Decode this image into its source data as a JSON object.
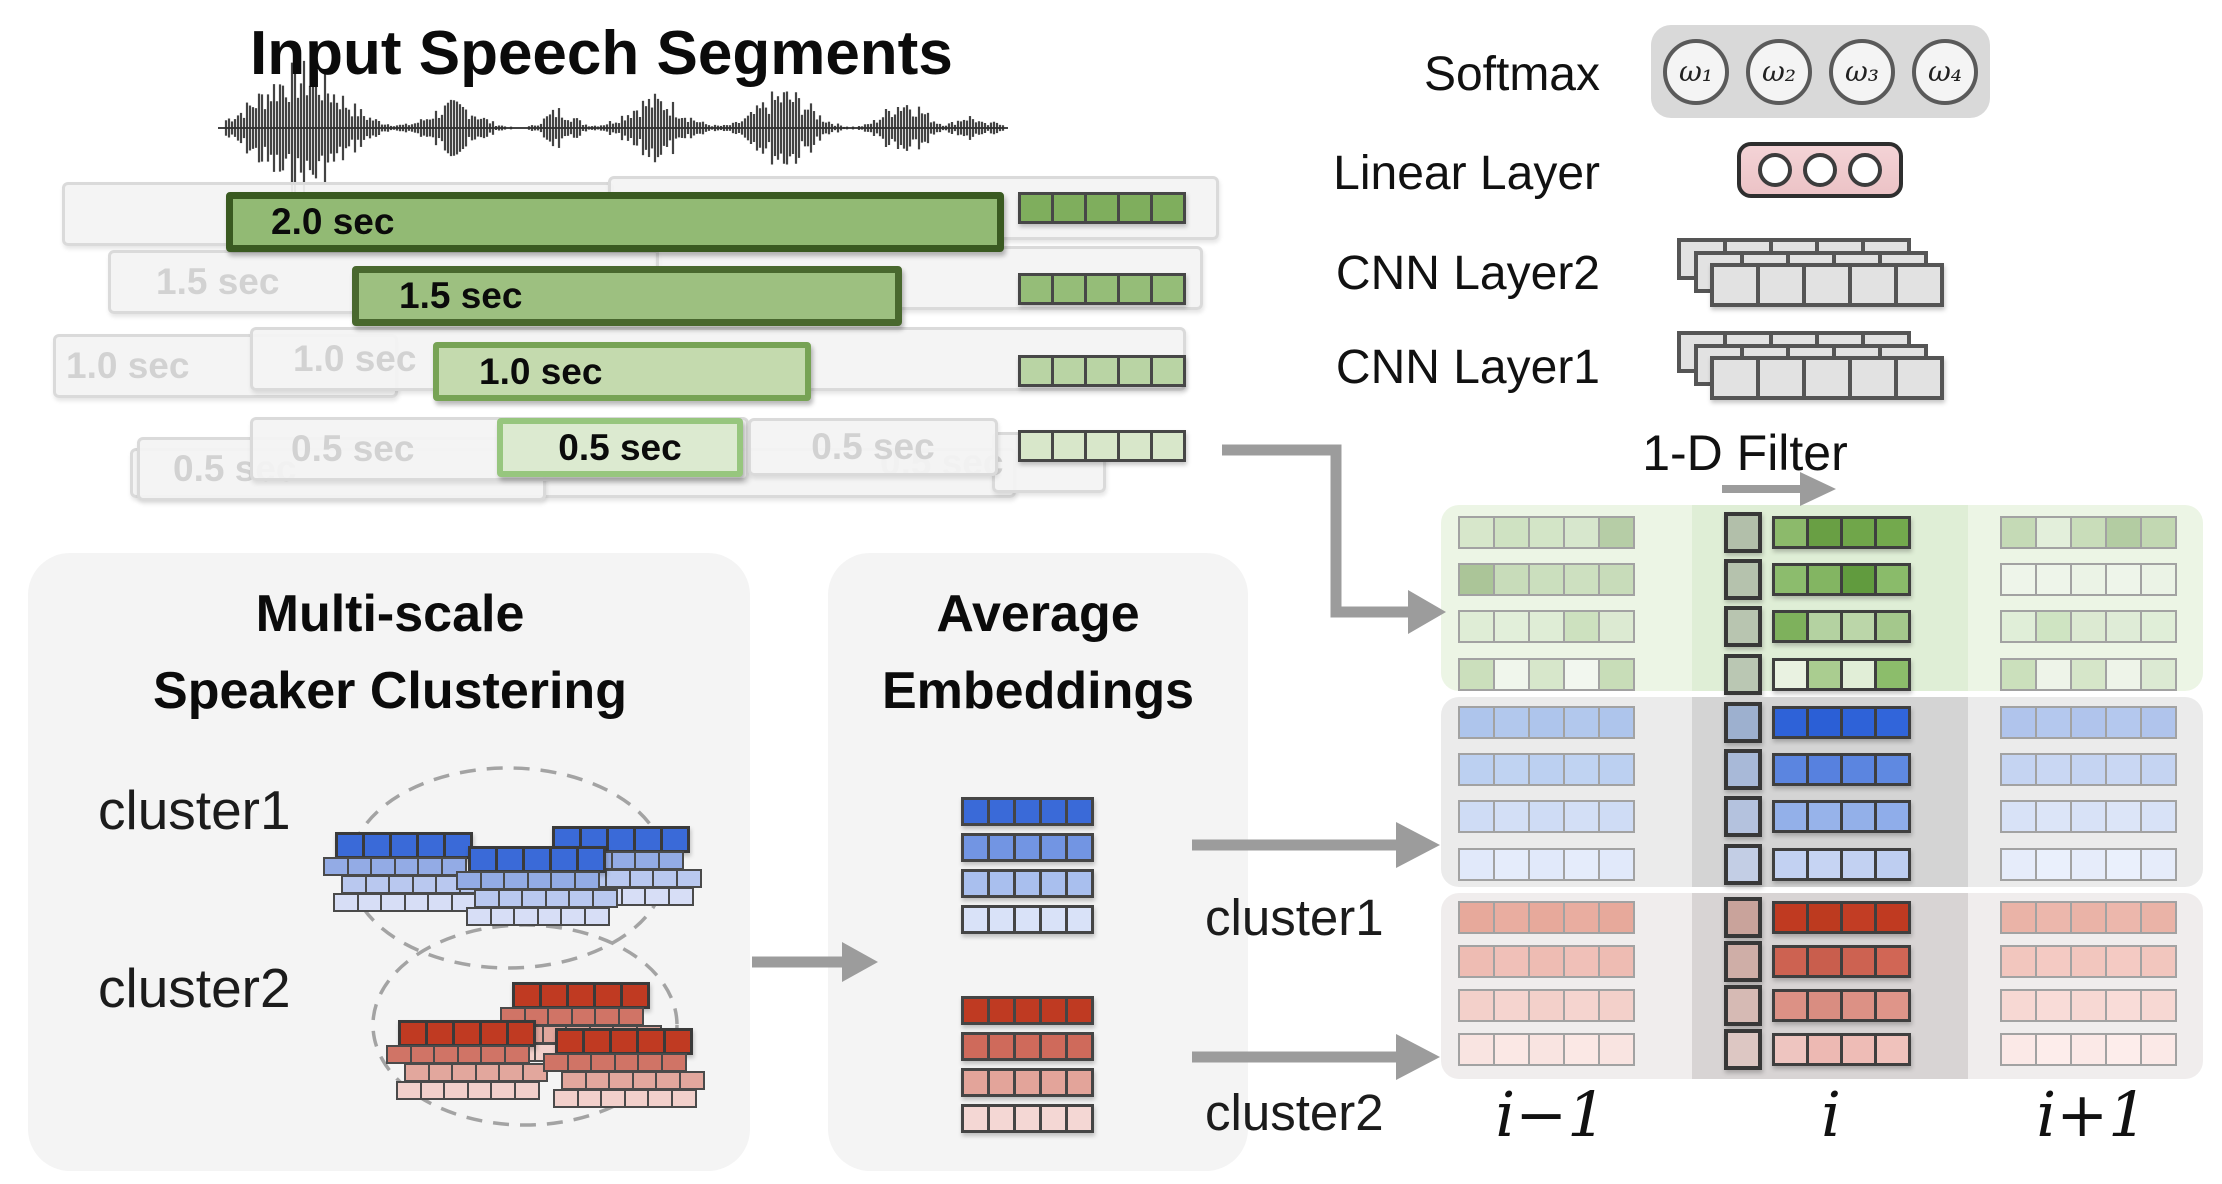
{
  "title": "Input Speech Segments",
  "segments": {
    "bars": [
      {
        "label": "2.0 sec",
        "fill": "#92ba74",
        "border": "#3a5a21",
        "strip": "#7fae5d"
      },
      {
        "label": "1.5 sec",
        "fill": "#9dc080",
        "border": "#49682e",
        "strip": "#95bd78"
      },
      {
        "label": "1.0 sec",
        "fill": "#c4daae",
        "border": "#77a355",
        "strip": "#b9d4a4"
      },
      {
        "label": "0.5 sec",
        "fill": "#dcead0",
        "border": "#97c67e",
        "strip": "#d8e7ca"
      }
    ],
    "ghost_labels": [
      "",
      "",
      "1.5 sec",
      "",
      "1.0 sec",
      "1.0 sec",
      "",
      "0.5 sec",
      "0.5 sec",
      "0.5 sec",
      "0.5 sec"
    ]
  },
  "encoder": {
    "softmax_label": "Softmax",
    "softmax_units": [
      "ω₁",
      "ω₂",
      "ω₃",
      "ω₄"
    ],
    "linear_label": "Linear Layer",
    "cnn2_label": "CNN Layer2",
    "cnn1_label": "CNN Layer1",
    "cnn_cell_color": "#e2e2e2",
    "softmax_box_color": "#d9d9d9",
    "linear_box_color": "#f2cfd2"
  },
  "filter": {
    "label": "1-D Filter"
  },
  "clustering_panel": {
    "title_line1": "Multi-scale",
    "title_line2": "Speaker Clustering",
    "cluster1_label": "cluster1",
    "cluster2_label": "cluster2",
    "blue_palette": [
      "#3a6ad8",
      "#93abe5",
      "#b9c8ef",
      "#d7def6"
    ],
    "red_palette": [
      "#c03a22",
      "#d07466",
      "#e2a79d",
      "#f2d0cb"
    ]
  },
  "average_panel": {
    "title_line1": "Average",
    "title_line2": "Embeddings",
    "blue_rows": [
      "#3a6ad8",
      "#7295e3",
      "#a9bfee",
      "#d9e2f8"
    ],
    "red_rows": [
      "#bf3a22",
      "#cf6a5b",
      "#e3a49a",
      "#f4d7d4"
    ],
    "cluster1_label": "cluster1",
    "cluster2_label": "cluster2"
  },
  "grid": {
    "column_labels": [
      "i−1",
      "i",
      "i+1"
    ],
    "groups": [
      {
        "name": "scale-embeddings",
        "bg": "#ecf5e5",
        "band": "#dfeed6",
        "rows": [
          {
            "left": [
              "#d7e7cb",
              "#cfe2c2",
              "#d3e5c7",
              "#d7e7cd",
              "#b6cda6"
            ],
            "center": [
              "#8cba6b",
              "#699f44",
              "#70a64a",
              "#73a94d"
            ],
            "right": [
              "#c5dab6",
              "#e3efdb",
              "#c9ddba",
              "#b3cca2",
              "#c2d8b2"
            ],
            "filter": "#b2bfaa"
          },
          {
            "left": [
              "#abc598",
              "#c8dcba",
              "#cbdfbe",
              "#cde0c0",
              "#c8dcba"
            ],
            "center": [
              "#8cbc6d",
              "#83b562",
              "#619b3e",
              "#8abb6a"
            ],
            "right": [
              "#eef5ea",
              "#eef5ea",
              "#ebf3e6",
              "#eef5ea",
              "#ebf3e6"
            ],
            "filter": "#b5c2ad"
          },
          {
            "left": [
              "#dfedd6",
              "#e2efda",
              "#dfedd6",
              "#cde1bf",
              "#dcead2"
            ],
            "center": [
              "#7eb15c",
              "#b4d2a1",
              "#bbd6a9",
              "#a4c88c"
            ],
            "right": [
              "#e0eed8",
              "#cfe4c2",
              "#dcead2",
              "#dfecd7",
              "#e0eed8"
            ],
            "filter": "#b8c5b0"
          },
          {
            "left": [
              "#cbdfbc",
              "#f0f6ec",
              "#d7e7cb",
              "#f2f7ef",
              "#c8ddb8"
            ],
            "center": [
              "#e9f2e1",
              "#aacd90",
              "#e1eed7",
              "#8cbd6b"
            ],
            "right": [
              "#cbe0bc",
              "#eef4e9",
              "#d6e6c9",
              "#eef4e9",
              "#dcead3"
            ],
            "filter": "#bac7b3"
          }
        ]
      },
      {
        "name": "cluster1-similarity",
        "bg": "#ebebeb",
        "band": "#d4d4d4",
        "rows": [
          {
            "left": [
              "#aec5ec",
              "#b2c8ed",
              "#aec5ec",
              "#b2c8ed",
              "#aec5ec"
            ],
            "center": [
              "#2e62d8",
              "#2b5fd6",
              "#2e62d8",
              "#3165da"
            ],
            "right": [
              "#b0c4ec",
              "#b4c8ee",
              "#b0c4ec",
              "#b4c8ee",
              "#b0c4ec"
            ],
            "filter": "#9db0cf"
          },
          {
            "left": [
              "#bcd0f1",
              "#c0d3f2",
              "#bcd0f1",
              "#c0d3f2",
              "#bcd0f1"
            ],
            "center": [
              "#5b85e0",
              "#5781df",
              "#5b85e0",
              "#5f89e1"
            ],
            "right": [
              "#c5d4f2",
              "#c9d7f3",
              "#c5d4f2",
              "#c9d7f3",
              "#c5d4f2"
            ],
            "filter": "#a8b9d8"
          },
          {
            "left": [
              "#cfdcf5",
              "#d3dff6",
              "#cfdcf5",
              "#d3dff6",
              "#cfdcf5"
            ],
            "center": [
              "#93b0e9",
              "#97b3ea",
              "#93b0e9",
              "#8fadea"
            ],
            "right": [
              "#d8e2f7",
              "#dce5f8",
              "#d8e2f7",
              "#dce5f8",
              "#d8e2f7"
            ],
            "filter": "#b4c2de"
          },
          {
            "left": [
              "#e1e9fa",
              "#e5ecfb",
              "#e1e9fa",
              "#e5ecfb",
              "#e1e9fa"
            ],
            "center": [
              "#c2d1f2",
              "#c6d4f3",
              "#c2d1f2",
              "#becef1"
            ],
            "right": [
              "#e6ecfa",
              "#eaf0fc",
              "#e6ecfa",
              "#eaf0fc",
              "#e6ecfa"
            ],
            "filter": "#c3cee5"
          }
        ]
      },
      {
        "name": "cluster2-similarity",
        "bg": "#f0eded",
        "band": "#d8d4d4",
        "rows": [
          {
            "left": [
              "#e7a99b",
              "#e9ada0",
              "#e7a99b",
              "#e9ada0",
              "#e7a99b"
            ],
            "center": [
              "#c03a21",
              "#bd3a1f",
              "#c23d24",
              "#c03a21"
            ],
            "right": [
              "#eab3a7",
              "#ecb7ac",
              "#eab3a7",
              "#ecb7ac",
              "#eab3a7"
            ],
            "filter": "#c9a39b"
          },
          {
            "left": [
              "#eebcb3",
              "#f0c0b8",
              "#eebcb3",
              "#f0c0b8",
              "#eebcb3"
            ],
            "center": [
              "#cd6251",
              "#c95e4d",
              "#cd6251",
              "#d16655"
            ],
            "right": [
              "#f2c6be",
              "#f4cac3",
              "#f2c6be",
              "#f4cac3",
              "#f2c6be"
            ],
            "filter": "#cfaea7"
          },
          {
            "left": [
              "#f3d0ca",
              "#f5d4cf",
              "#f3d0ca",
              "#f5d4cf",
              "#f3d0ca"
            ],
            "center": [
              "#dc9185",
              "#d98d81",
              "#dc9185",
              "#df9589"
            ],
            "right": [
              "#f7d8d3",
              "#f9dcd8",
              "#f7d8d3",
              "#f9dcd8",
              "#f7d8d3"
            ],
            "filter": "#d6bab4"
          },
          {
            "left": [
              "#f9e4e1",
              "#fbe8e5",
              "#f9e4e1",
              "#fbe8e5",
              "#f9e4e1"
            ],
            "center": [
              "#eec5c0",
              "#edb9b3",
              "#eebcb6",
              "#f0c2bc"
            ],
            "right": [
              "#fbe9e7",
              "#fdedeb",
              "#fbe9e7",
              "#fdedeb",
              "#fbe9e7"
            ],
            "filter": "#ddc7c3"
          }
        ]
      }
    ]
  }
}
